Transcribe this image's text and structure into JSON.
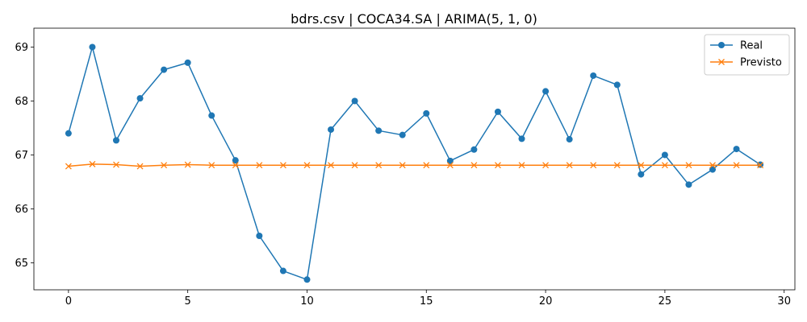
{
  "chart_data": {
    "type": "line",
    "title": "bdrs.csv | COCA34.SA | ARIMA(5, 1, 0)",
    "xlabel": "",
    "ylabel": "",
    "x": [
      0,
      1,
      2,
      3,
      4,
      5,
      6,
      7,
      8,
      9,
      10,
      11,
      12,
      13,
      14,
      15,
      16,
      17,
      18,
      19,
      20,
      21,
      22,
      23,
      24,
      25,
      26,
      27,
      28,
      29
    ],
    "xlim": [
      -1.45,
      30.45
    ],
    "ylim": [
      64.5,
      69.35
    ],
    "xticks": [
      0,
      5,
      10,
      15,
      20,
      25,
      30
    ],
    "yticks": [
      65,
      66,
      67,
      68,
      69
    ],
    "grid": false,
    "legend_position": "top-right",
    "series": [
      {
        "name": "Real",
        "color": "#1f77b4",
        "marker": "circle",
        "values": [
          67.4,
          69.0,
          67.27,
          68.05,
          68.58,
          68.71,
          67.73,
          66.9,
          65.5,
          64.85,
          64.69,
          67.47,
          68.0,
          67.45,
          67.37,
          67.77,
          66.89,
          67.1,
          67.8,
          67.3,
          68.18,
          67.29,
          68.47,
          68.3,
          66.64,
          67.0,
          66.45,
          66.73,
          67.11,
          66.82
        ]
      },
      {
        "name": "Previsto",
        "color": "#ff7f0e",
        "marker": "x",
        "values": [
          66.79,
          66.83,
          66.82,
          66.79,
          66.81,
          66.82,
          66.81,
          66.81,
          66.81,
          66.81,
          66.81,
          66.81,
          66.81,
          66.81,
          66.81,
          66.81,
          66.81,
          66.81,
          66.81,
          66.81,
          66.81,
          66.81,
          66.81,
          66.81,
          66.81,
          66.81,
          66.81,
          66.81,
          66.81,
          66.81
        ]
      }
    ]
  }
}
